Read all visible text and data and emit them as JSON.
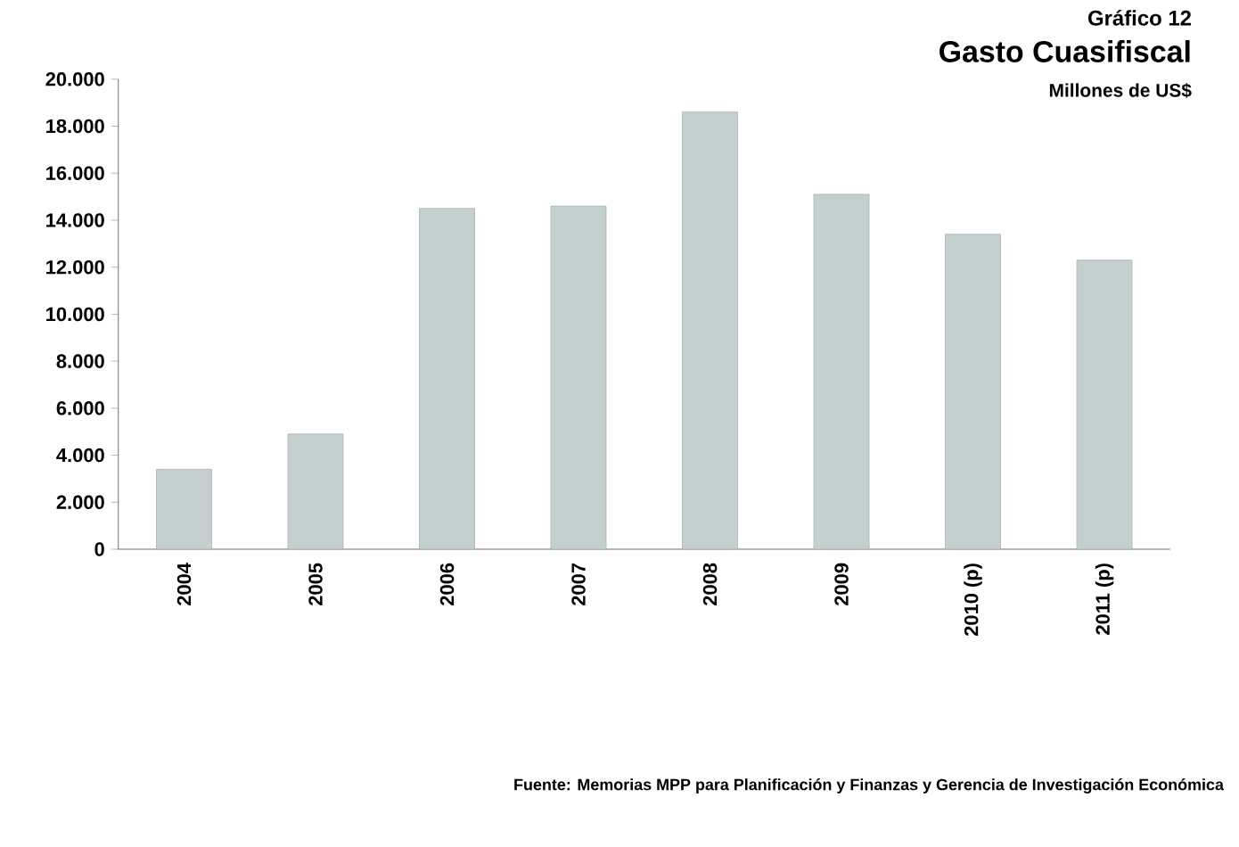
{
  "chart_data": {
    "type": "bar",
    "title": "Gasto Cuasifiscal",
    "subtitle": "Millones de US$",
    "annotations": [
      "Gráfico 12",
      "Fuente: Memorias MPP para Planificación y Finanzas y Gerencia de Investigación Económica"
    ],
    "categories": [
      "2004",
      "2005",
      "2006",
      "2007",
      "2008",
      "2009",
      "2010 (p)",
      "2011 (p)"
    ],
    "values": [
      3400,
      4900,
      14500,
      14600,
      18600,
      15100,
      13400,
      12300
    ],
    "color": "#c4d0d0",
    "ylim": [
      0,
      20000
    ],
    "yticks": [
      0,
      {
        "value": 2000,
        "label": "2.000"
      },
      {
        "value": 4000,
        "label": "4.000"
      },
      {
        "value": 6000,
        "label": "6.000"
      },
      {
        "value": 8000,
        "label": "8.000"
      },
      {
        "value": 10000,
        "label": "10.000"
      },
      {
        "value": 12000,
        "label": "12.000"
      },
      {
        "value": 14000,
        "label": "14.000"
      },
      {
        "value": 16000,
        "label": "16.000"
      },
      {
        "value": 18000,
        "label": "18.000"
      },
      {
        "value": 20000,
        "label": "20.000"
      }
    ]
  }
}
